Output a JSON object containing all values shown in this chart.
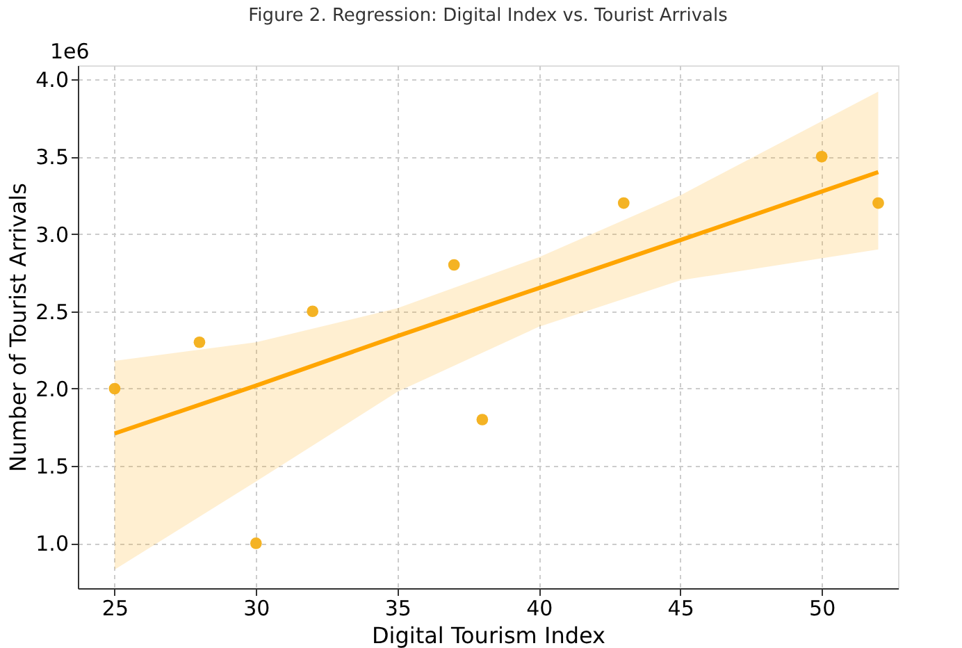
{
  "chart_data": {
    "type": "scatter",
    "title": "Figure 2. Regression: Digital Index vs. Tourist Arrivals",
    "xlabel": "Digital Tourism Index",
    "ylabel": "Number of Tourist Arrivals",
    "annotations": [
      "1e6"
    ],
    "xlim": [
      23.7,
      52.7
    ],
    "xticks": [
      25,
      30,
      35,
      40,
      45,
      50
    ],
    "ylim": [
      0.71,
      4.09
    ],
    "yticks": [
      {
        "value": 1,
        "label": "1.0"
      },
      1.5,
      {
        "value": 2,
        "label": "2.0"
      },
      2.5,
      {
        "value": 3,
        "label": "3.0"
      },
      3.5,
      {
        "value": 4,
        "label": "4.0"
      }
    ],
    "grid": true,
    "series": [
      {
        "color": "#f4b324",
        "marker": "circle",
        "x": [
          25,
          28,
          30,
          32,
          37,
          38,
          43,
          50,
          52
        ],
        "values": [
          2.0,
          2.3,
          1.0,
          2.5,
          2.8,
          1.8,
          3.2,
          3.5,
          3.2
        ]
      },
      {
        "type": "line",
        "color": "#ffa500",
        "line_style": "solid",
        "x": [
          25,
          30,
          35,
          40,
          45,
          52
        ],
        "values": [
          1.71,
          2.02,
          2.34,
          2.65,
          2.96,
          3.4
        ],
        "lower": [
          0.83,
          1.4,
          1.98,
          2.4,
          2.7,
          2.9
        ],
        "upper": [
          2.18,
          2.3,
          2.52,
          2.85,
          3.25,
          3.92
        ]
      }
    ]
  }
}
